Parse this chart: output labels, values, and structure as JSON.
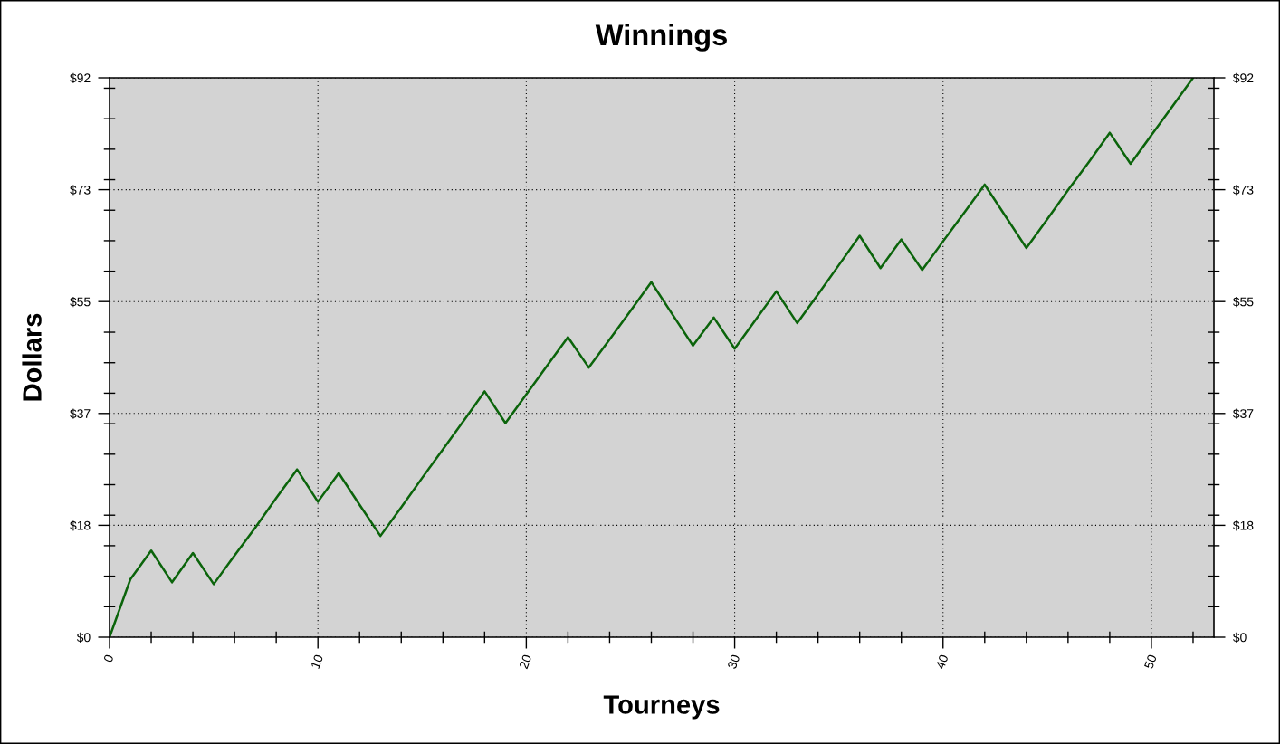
{
  "chart_data": {
    "type": "line",
    "title": "Winnings",
    "xlabel": "Tourneys",
    "ylabel": "Dollars",
    "x": [
      0,
      1,
      2,
      3,
      4,
      5,
      6,
      7,
      8,
      9,
      10,
      11,
      12,
      13,
      14,
      15,
      16,
      17,
      18,
      19,
      20,
      21,
      22,
      23,
      24,
      25,
      26,
      27,
      28,
      29,
      30,
      31,
      32,
      33,
      34,
      35,
      36,
      37,
      38,
      39,
      40,
      41,
      42,
      43,
      44,
      45,
      46,
      47,
      48,
      49,
      50,
      51,
      52
    ],
    "series": [
      {
        "color": "#0b640b",
        "values": [
          0,
          9.5,
          14.2,
          9.0,
          13.8,
          8.7,
          13.4,
          18.0,
          22.8,
          27.5,
          22.2,
          26.9,
          21.7,
          16.6,
          21.3,
          26.1,
          30.8,
          35.5,
          40.3,
          35.1,
          39.8,
          44.5,
          49.2,
          44.2,
          48.8,
          53.5,
          58.2,
          53.0,
          47.8,
          52.4,
          47.3,
          52.0,
          56.7,
          51.5,
          56.2,
          61.0,
          65.8,
          60.5,
          65.2,
          60.2,
          64.9,
          69.5,
          74.2,
          69.0,
          63.8,
          68.5,
          73.3,
          77.9,
          82.7,
          77.6,
          82.3,
          87.0,
          91.7
        ]
      }
    ],
    "xlim": [
      0,
      53
    ],
    "xticks": [
      0,
      {
        "value": 2,
        "label": null
      },
      {
        "value": 4,
        "label": null
      },
      {
        "value": 6,
        "label": null
      },
      {
        "value": 8,
        "label": null
      },
      10,
      {
        "value": 12,
        "label": null
      },
      {
        "value": 14,
        "label": null
      },
      {
        "value": 16,
        "label": null
      },
      {
        "value": 18,
        "label": null
      },
      20,
      {
        "value": 22,
        "label": null
      },
      {
        "value": 24,
        "label": null
      },
      {
        "value": 26,
        "label": null
      },
      {
        "value": 28,
        "label": null
      },
      30,
      {
        "value": 32,
        "label": null
      },
      {
        "value": 34,
        "label": null
      },
      {
        "value": 36,
        "label": null
      },
      {
        "value": 38,
        "label": null
      },
      40,
      {
        "value": 42,
        "label": null
      },
      {
        "value": 44,
        "label": null
      },
      {
        "value": 46,
        "label": null
      },
      {
        "value": 48,
        "label": null
      },
      50,
      {
        "value": 52,
        "label": null
      }
    ],
    "ylim": [
      0,
      91.7
    ],
    "yticks": [
      {
        "value": 0,
        "label": "$0"
      },
      {
        "value": 5,
        "label": null
      },
      {
        "value": 10,
        "label": null
      },
      {
        "value": 15,
        "label": null
      },
      {
        "value": 18.34,
        "label": "$18"
      },
      {
        "value": 20,
        "label": null
      },
      {
        "value": 25,
        "label": null
      },
      {
        "value": 30,
        "label": null
      },
      {
        "value": 35,
        "label": null
      },
      {
        "value": 36.68,
        "label": "$37"
      },
      {
        "value": 40,
        "label": null
      },
      {
        "value": 45,
        "label": null
      },
      {
        "value": 50,
        "label": null
      },
      {
        "value": 55.02,
        "label": "$55"
      },
      {
        "value": 60,
        "label": null
      },
      {
        "value": 65,
        "label": null
      },
      {
        "value": 70,
        "label": null
      },
      {
        "value": 73.36,
        "label": "$73"
      },
      {
        "value": 75,
        "label": null
      },
      {
        "value": 80,
        "label": null
      },
      {
        "value": 85,
        "label": null
      },
      {
        "value": 90,
        "label": null
      },
      {
        "value": 91.7,
        "label": "$92"
      }
    ],
    "y2lim": [
      0,
      91.7
    ],
    "y2ticks": [
      {
        "value": 0,
        "label": "$0"
      },
      {
        "value": 5,
        "label": null
      },
      {
        "value": 10,
        "label": null
      },
      {
        "value": 15,
        "label": null
      },
      {
        "value": 18.34,
        "label": "$18"
      },
      {
        "value": 20,
        "label": null
      },
      {
        "value": 25,
        "label": null
      },
      {
        "value": 30,
        "label": null
      },
      {
        "value": 35,
        "label": null
      },
      {
        "value": 36.68,
        "label": "$37"
      },
      {
        "value": 40,
        "label": null
      },
      {
        "value": 45,
        "label": null
      },
      {
        "value": 50,
        "label": null
      },
      {
        "value": 55.02,
        "label": "$55"
      },
      {
        "value": 60,
        "label": null
      },
      {
        "value": 65,
        "label": null
      },
      {
        "value": 70,
        "label": null
      },
      {
        "value": 73.36,
        "label": "$73"
      },
      {
        "value": 75,
        "label": null
      },
      {
        "value": 80,
        "label": null
      },
      {
        "value": 85,
        "label": null
      },
      {
        "value": 90,
        "label": null
      },
      {
        "value": 91.7,
        "label": "$92"
      }
    ],
    "grid": true,
    "marker": "none",
    "line_style": "solid"
  }
}
